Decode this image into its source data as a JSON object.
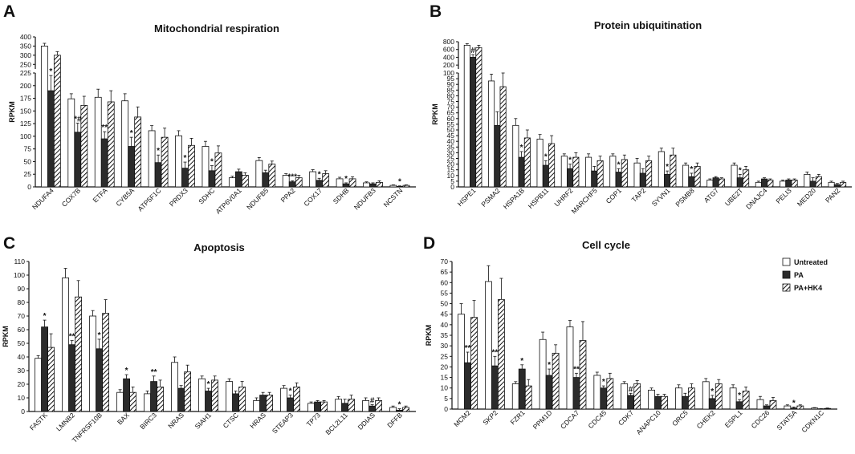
{
  "legend": {
    "entries": [
      {
        "name": "Untreated",
        "style": "white"
      },
      {
        "name": "PA",
        "style": "black"
      },
      {
        "name": "PA+HK4",
        "style": "hatch"
      }
    ]
  },
  "chart_data": [
    {
      "panel": "A",
      "type": "bar",
      "title": "Mitochondrial respiration",
      "ylabel": "RPKM",
      "break": {
        "low": [
          0,
          225
        ],
        "high": [
          225,
          400
        ]
      },
      "yticks_low": [
        0,
        25,
        50,
        75,
        100,
        125,
        150,
        175,
        200,
        225
      ],
      "yticks_high": [
        250,
        300,
        350,
        400
      ],
      "categories": [
        "NDUFA4",
        "COX7B",
        "ETFA",
        "CYB5A",
        "ATP5F1C",
        "PRDX3",
        "SDHC",
        "ATP6V0A1",
        "NDUFB5",
        "PPA2",
        "COX17",
        "SDHB",
        "NDUFB3",
        "NCSTN"
      ],
      "series": [
        {
          "name": "Untreated",
          "values": [
            350,
            174,
            177,
            170,
            111,
            101,
            80,
            18,
            52,
            23,
            30,
            16,
            8,
            3
          ],
          "errors": [
            15,
            10,
            16,
            14,
            10,
            10,
            10,
            3,
            6,
            3,
            4,
            3,
            2,
            1
          ]
        },
        {
          "name": "PA",
          "values": [
            190,
            108,
            95,
            80,
            48,
            37,
            32,
            30,
            28,
            10,
            13,
            6,
            6,
            1
          ],
          "errors": [
            30,
            18,
            14,
            18,
            15,
            12,
            10,
            5,
            5,
            2,
            4,
            2,
            2,
            1
          ]
        },
        {
          "name": "PA+HK4",
          "values": [
            300,
            161,
            168,
            138,
            98,
            82,
            67,
            23,
            45,
            18,
            26,
            16,
            9,
            3
          ],
          "errors": [
            20,
            18,
            22,
            20,
            18,
            14,
            14,
            5,
            6,
            5,
            6,
            4,
            3,
            1
          ]
        }
      ],
      "annotations": [
        {
          "category": "NDUFA4",
          "text": "*"
        },
        {
          "category": "COX7B",
          "text": "*#"
        },
        {
          "category": "ETFA",
          "text": "**"
        },
        {
          "category": "CYB5A",
          "text": "*"
        },
        {
          "category": "ATP5F1C",
          "text": "*"
        },
        {
          "category": "PRDX3",
          "text": "*"
        },
        {
          "category": "SDHC",
          "text": "*"
        },
        {
          "category": "PPA2",
          "text": "***"
        },
        {
          "category": "COX17",
          "text": "*"
        },
        {
          "category": "SDHB",
          "text": "*"
        },
        {
          "category": "NCSTN",
          "text": "*"
        }
      ]
    },
    {
      "panel": "B",
      "type": "bar",
      "title": "Protein  ubiquitination",
      "ylabel": "RPKM",
      "break": {
        "low": [
          0,
          100
        ],
        "high": [
          100,
          800
        ]
      },
      "yticks_low": [
        0,
        5,
        10,
        15,
        20,
        25,
        30,
        35,
        40,
        45,
        50,
        55,
        60,
        65,
        70,
        75,
        80,
        85,
        90,
        95,
        100
      ],
      "yticks_high": [
        200,
        400,
        600,
        800
      ],
      "categories": [
        "HSPE1",
        "PSMA2",
        "HSPA1B",
        "HSPB11",
        "UHRF2",
        "MARCHF5",
        "COP1",
        "TAP2",
        "SYVN1",
        "PSMB8",
        "ATG7",
        "UBE2T",
        "DNAJC4",
        "PELI3",
        "MED20",
        "PAN2"
      ],
      "series": [
        {
          "name": "Untreated",
          "values": [
            710,
            93,
            54,
            42,
            27,
            26,
            27,
            21,
            31,
            19,
            6,
            19,
            4,
            5,
            11,
            4
          ],
          "errors": [
            40,
            6,
            6,
            4,
            2,
            3,
            2,
            4,
            3,
            2,
            1,
            2,
            1,
            1,
            2,
            1
          ]
        },
        {
          "name": "PA",
          "values": [
            400,
            54,
            26,
            19,
            16,
            14,
            13,
            12,
            11,
            9,
            8,
            8,
            7,
            6,
            5,
            2
          ],
          "errors": [
            70,
            12,
            5,
            4,
            4,
            4,
            3,
            4,
            3,
            3,
            1,
            3,
            1,
            1,
            3,
            1
          ]
        },
        {
          "name": "PA+HK4",
          "values": [
            650,
            88,
            43,
            38,
            26,
            23,
            24,
            23,
            28,
            18,
            7,
            15,
            6,
            6,
            9,
            4
          ],
          "errors": [
            60,
            12,
            7,
            7,
            4,
            4,
            4,
            4,
            6,
            3,
            1,
            3,
            1,
            1,
            2,
            1
          ]
        }
      ],
      "annotations": [
        {
          "category": "HSPE1",
          "text": "#"
        },
        {
          "category": "HSPA1B",
          "text": "*"
        },
        {
          "category": "HSPB11",
          "text": "*"
        },
        {
          "category": "UHRF2",
          "text": "*"
        },
        {
          "category": "COP1",
          "text": "*"
        },
        {
          "category": "SYVN1",
          "text": "*"
        },
        {
          "category": "PSMB8",
          "text": "*"
        },
        {
          "category": "UBE2T",
          "text": "*"
        }
      ]
    },
    {
      "panel": "C",
      "type": "bar",
      "title": "Apoptosis",
      "ylabel": "RPKM",
      "ylim": [
        0,
        110
      ],
      "yticks": [
        0,
        10,
        20,
        30,
        40,
        50,
        60,
        70,
        80,
        90,
        100,
        110
      ],
      "categories": [
        "FASTK",
        "LMNB2",
        "TNFRSF10B",
        "BAX",
        "BIRC3",
        "NRAS",
        "SIAH1",
        "CTSC",
        "HRAS",
        "STEAP3",
        "TP73",
        "BCL2L11",
        "DDIAS",
        "DFFB"
      ],
      "series": [
        {
          "name": "Untreated",
          "values": [
            39,
            98,
            70,
            14,
            13,
            36,
            24,
            22,
            8,
            17,
            6,
            9,
            8,
            3
          ],
          "errors": [
            2,
            7,
            4,
            2,
            2,
            4,
            2,
            2,
            2,
            2,
            1,
            2,
            2,
            1
          ]
        },
        {
          "name": "PA",
          "values": [
            62,
            49,
            46,
            24,
            22,
            17,
            15,
            13,
            12,
            10,
            7,
            6,
            4,
            1
          ],
          "errors": [
            5,
            3,
            7,
            3,
            4,
            2,
            2,
            2,
            2,
            2,
            1,
            3,
            1,
            1
          ]
        },
        {
          "name": "PA+HK4",
          "values": [
            47,
            84,
            72,
            14,
            18,
            29,
            23,
            18,
            12,
            18,
            7,
            9,
            8,
            3
          ],
          "errors": [
            10,
            12,
            10,
            4,
            5,
            5,
            3,
            4,
            2,
            3,
            1,
            3,
            2,
            1
          ]
        }
      ],
      "annotations": [
        {
          "category": "FASTK",
          "text": "*"
        },
        {
          "category": "LMNB2",
          "text": "**"
        },
        {
          "category": "TNFRSF10B",
          "text": "*"
        },
        {
          "category": "BAX",
          "text": "*"
        },
        {
          "category": "BIRC3",
          "text": "**"
        },
        {
          "category": "SIAH1",
          "text": "*"
        },
        {
          "category": "STEAP3",
          "text": "*"
        },
        {
          "category": "DDIAS",
          "text": "#"
        },
        {
          "category": "DFFB",
          "text": "*"
        }
      ]
    },
    {
      "panel": "D",
      "type": "bar",
      "title": "Cell cycle",
      "ylabel": "RPKM",
      "ylim": [
        0,
        70
      ],
      "yticks": [
        0,
        5,
        10,
        15,
        20,
        25,
        30,
        35,
        40,
        45,
        50,
        55,
        60,
        65,
        70
      ],
      "categories": [
        "MCM2",
        "SKP2",
        "FZR1",
        "PPM1D",
        "CDCA7",
        "CDC45",
        "CDK7",
        "ANAPC10",
        "ORC5",
        "CHEK2",
        "ESPL1",
        "CDC26",
        "STAT5A",
        "CDKN1C"
      ],
      "series": [
        {
          "name": "Untreated",
          "values": [
            45,
            60.5,
            12,
            33,
            39,
            16,
            12,
            9,
            10,
            13,
            10,
            4.5,
            1.5,
            0.5
          ],
          "errors": [
            5,
            7.5,
            1,
            3.5,
            3,
            1.5,
            1,
            1,
            1.5,
            1.5,
            1.5,
            1.5,
            0.5,
            0.2
          ]
        },
        {
          "name": "PA",
          "values": [
            22,
            20.5,
            19,
            16,
            15,
            10,
            6.5,
            6,
            6,
            5,
            3.5,
            1.5,
            0.5,
            0.1
          ],
          "errors": [
            5,
            4.5,
            2,
            3,
            2,
            1,
            1,
            1,
            1.5,
            1.5,
            1,
            0.5,
            0.5,
            0.1
          ]
        },
        {
          "name": "PA+HK4",
          "values": [
            43.5,
            52,
            11,
            26.5,
            32.5,
            14.5,
            12,
            6,
            10,
            12,
            8.5,
            4,
            1.5,
            0.3
          ],
          "errors": [
            8,
            10,
            3,
            4,
            9,
            2.5,
            1.5,
            1,
            2,
            2,
            2,
            1.5,
            0.5,
            0.2
          ]
        }
      ],
      "annotations": [
        {
          "category": "MCM2",
          "text": "**"
        },
        {
          "category": "SKP2",
          "text": "**"
        },
        {
          "category": "FZR1",
          "text": "*"
        },
        {
          "category": "PPM1D",
          "text": "*"
        },
        {
          "category": "CDCA7",
          "text": "**"
        },
        {
          "category": "CDC45",
          "text": "*"
        },
        {
          "category": "CDK7",
          "text": "#"
        },
        {
          "category": "CHEK2",
          "text": "*"
        },
        {
          "category": "ESPL1",
          "text": "*"
        },
        {
          "category": "STAT5A",
          "text": "*"
        }
      ]
    }
  ]
}
